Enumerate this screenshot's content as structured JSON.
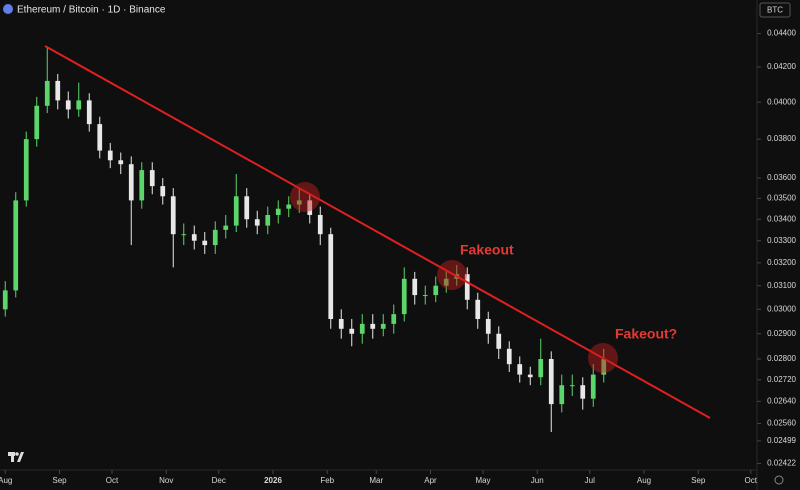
{
  "chart_data": {
    "type": "candlestick",
    "title": "Ethereum / Bitcoin · 1D · Binance",
    "currency": "BTC",
    "log_scale": true,
    "up_color": "#5cd66a",
    "down_color": "#e8e8e8",
    "annotations": [
      "Fakeout",
      "Fakeout?"
    ],
    "annotation_color": "#e53935",
    "x": [
      0,
      6,
      12,
      18,
      24,
      30,
      36,
      42,
      48,
      54,
      60,
      66,
      72,
      78,
      84,
      90,
      96,
      102,
      108,
      114,
      120,
      126,
      132,
      138,
      144,
      150,
      156,
      162,
      168,
      174,
      180,
      186,
      192,
      198,
      204,
      210,
      216,
      222,
      228,
      234,
      240,
      246,
      252,
      258,
      264,
      270,
      276,
      282,
      288,
      294,
      300,
      306,
      312,
      318,
      324,
      330,
      336,
      342
    ],
    "open": [
      0.03,
      0.0308,
      0.0349,
      0.038,
      0.0398,
      0.0412,
      0.0401,
      0.0396,
      0.0401,
      0.0388,
      0.0374,
      0.0369,
      0.0367,
      0.0349,
      0.0364,
      0.0356,
      0.0351,
      0.0333,
      0.0333,
      0.033,
      0.0328,
      0.0335,
      0.0337,
      0.0351,
      0.034,
      0.0337,
      0.0342,
      0.0345,
      0.0347,
      0.0349,
      0.0342,
      0.0333,
      0.0296,
      0.0292,
      0.029,
      0.0294,
      0.0292,
      0.0294,
      0.0298,
      0.0313,
      0.0306,
      0.0306,
      0.031,
      0.0313,
      0.0315,
      0.0304,
      0.0296,
      0.029,
      0.0284,
      0.0278,
      0.0274,
      0.0273,
      0.028,
      0.0263,
      0.027,
      0.027,
      0.0265,
      0.0274
    ],
    "high": [
      0.0312,
      0.0353,
      0.0384,
      0.0403,
      0.0432,
      0.0416,
      0.0406,
      0.0411,
      0.0405,
      0.0392,
      0.0378,
      0.0373,
      0.0371,
      0.0368,
      0.0368,
      0.036,
      0.0355,
      0.0338,
      0.0337,
      0.0334,
      0.0339,
      0.0342,
      0.0362,
      0.0355,
      0.0344,
      0.0346,
      0.0349,
      0.0351,
      0.0355,
      0.0352,
      0.0346,
      0.0336,
      0.03,
      0.0296,
      0.0298,
      0.0298,
      0.0298,
      0.0302,
      0.0318,
      0.0316,
      0.031,
      0.0314,
      0.0317,
      0.0319,
      0.0318,
      0.0307,
      0.0299,
      0.0293,
      0.0287,
      0.0281,
      0.0277,
      0.0288,
      0.0283,
      0.0274,
      0.0274,
      0.0273,
      0.0278,
      0.0284
    ],
    "low": [
      0.0297,
      0.0305,
      0.0346,
      0.0376,
      0.0394,
      0.0396,
      0.0391,
      0.0392,
      0.0384,
      0.037,
      0.0365,
      0.0362,
      0.0328,
      0.0345,
      0.0352,
      0.0347,
      0.0318,
      0.0328,
      0.0326,
      0.0324,
      0.0324,
      0.0331,
      0.0334,
      0.0336,
      0.0333,
      0.0333,
      0.0338,
      0.0341,
      0.0343,
      0.0338,
      0.0328,
      0.0292,
      0.0288,
      0.0285,
      0.0286,
      0.0288,
      0.0289,
      0.029,
      0.0295,
      0.0302,
      0.0302,
      0.0303,
      0.0307,
      0.031,
      0.03,
      0.0292,
      0.0286,
      0.028,
      0.0275,
      0.0271,
      0.027,
      0.027,
      0.0253,
      0.026,
      0.0266,
      0.0261,
      0.0262,
      0.0271
    ],
    "close": [
      0.0308,
      0.0349,
      0.038,
      0.0398,
      0.0412,
      0.0401,
      0.0396,
      0.0401,
      0.0388,
      0.0374,
      0.0369,
      0.0367,
      0.0349,
      0.0364,
      0.0356,
      0.0351,
      0.0333,
      0.0333,
      0.033,
      0.0328,
      0.0335,
      0.0337,
      0.0351,
      0.034,
      0.0337,
      0.0342,
      0.0345,
      0.0347,
      0.0349,
      0.0342,
      0.0333,
      0.0296,
      0.0292,
      0.029,
      0.0294,
      0.0292,
      0.0294,
      0.0298,
      0.0313,
      0.0306,
      0.0306,
      0.031,
      0.0313,
      0.0315,
      0.0304,
      0.0296,
      0.029,
      0.0284,
      0.0278,
      0.0274,
      0.0273,
      0.028,
      0.0263,
      0.027,
      0.027,
      0.0265,
      0.0274,
      0.028
    ],
    "xlim": [
      -3,
      429
    ],
    "xticks": [
      {
        "value": 0,
        "label": "Aug"
      },
      {
        "value": 31,
        "label": "Sep"
      },
      {
        "value": 61,
        "label": "Oct"
      },
      {
        "value": 92,
        "label": "Nov"
      },
      {
        "value": 122,
        "label": "Dec"
      },
      {
        "value": 153,
        "label": "2026"
      },
      {
        "value": 184,
        "label": "Feb"
      },
      {
        "value": 212,
        "label": "Mar"
      },
      {
        "value": 243,
        "label": "Apr"
      },
      {
        "value": 273,
        "label": "May"
      },
      {
        "value": 304,
        "label": "Jun"
      },
      {
        "value": 334,
        "label": "Jul"
      },
      {
        "value": 365,
        "label": "Aug"
      },
      {
        "value": 396,
        "label": "Sep"
      },
      {
        "value": 426,
        "label": "Oct"
      }
    ],
    "ylim": [
      0.024,
      0.0461
    ],
    "yticks": [
      {
        "value": 0.044,
        "label": "0.04400"
      },
      {
        "value": 0.042,
        "label": "0.04200"
      },
      {
        "value": 0.04,
        "label": "0.04000"
      },
      {
        "value": 0.038,
        "label": "0.03800"
      },
      {
        "value": 0.036,
        "label": "0.03600"
      },
      {
        "value": 0.035,
        "label": "0.03500"
      },
      {
        "value": 0.034,
        "label": "0.03400"
      },
      {
        "value": 0.033,
        "label": "0.03300"
      },
      {
        "value": 0.032,
        "label": "0.03200"
      },
      {
        "value": 0.031,
        "label": "0.03100"
      },
      {
        "value": 0.03,
        "label": "0.03000"
      },
      {
        "value": 0.029,
        "label": "0.02900"
      },
      {
        "value": 0.028,
        "label": "0.02800"
      },
      {
        "value": 0.0272,
        "label": "0.02720"
      },
      {
        "value": 0.0264,
        "label": "0.02640"
      },
      {
        "value": 0.0256,
        "label": "0.02560"
      },
      {
        "value": 0.02499,
        "label": "0.02499"
      },
      {
        "value": 0.02422,
        "label": "0.02422"
      }
    ]
  }
}
